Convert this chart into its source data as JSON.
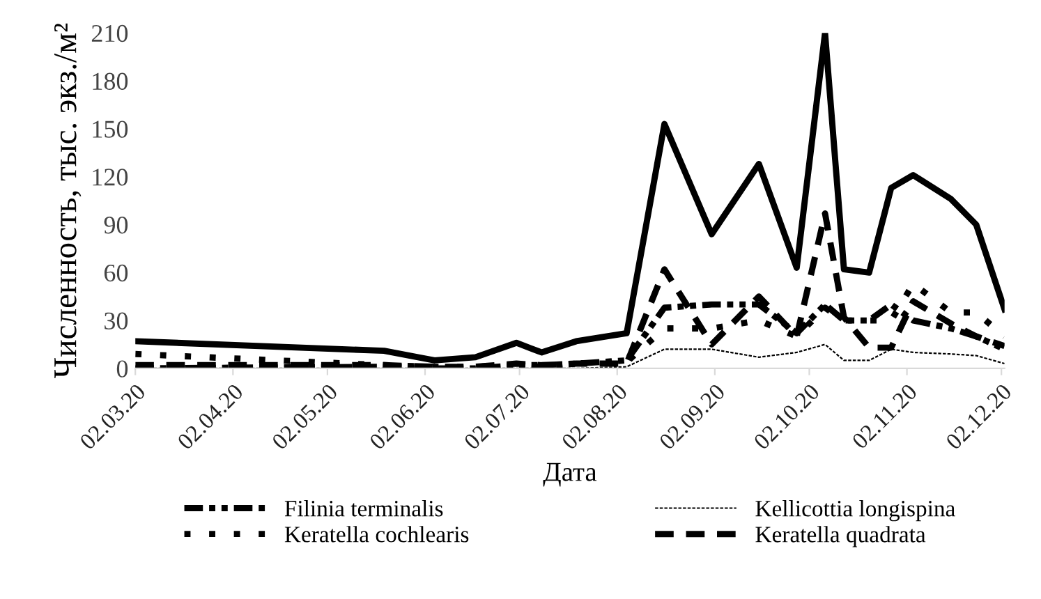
{
  "chart_data": {
    "type": "line",
    "xlabel": "Дата",
    "ylabel": "Численность, тыс. экз./м²",
    "x": [
      "2020-03-02",
      "2020-05-20",
      "2020-06-05",
      "2020-06-18",
      "2020-07-01",
      "2020-07-09",
      "2020-07-20",
      "2020-08-05",
      "2020-08-17",
      "2020-09-01",
      "2020-09-16",
      "2020-09-28",
      "2020-10-07",
      "2020-10-13",
      "2020-10-21",
      "2020-10-28",
      "2020-11-04",
      "2020-11-16",
      "2020-11-24",
      "2020-12-03"
    ],
    "series": [
      {
        "name": "Filinia terminalis",
        "color": "#000000",
        "line_style": "dashdotdot",
        "values": [
          0,
          1,
          0,
          0,
          2,
          1,
          3,
          5,
          38,
          40,
          40,
          22,
          40,
          30,
          30,
          40,
          30,
          25,
          20,
          12
        ]
      },
      {
        "name": "Keratella cochlearis",
        "color": "#000000",
        "line_style": "dotted",
        "values": [
          9,
          2,
          1,
          1,
          2,
          2,
          3,
          4,
          25,
          25,
          30,
          20,
          38,
          30,
          30,
          30,
          53,
          35,
          35,
          20
        ]
      },
      {
        "name": "Kellicottia longispina",
        "color": "#000000",
        "line_style": "thin",
        "values": [
          0,
          0,
          0,
          0,
          0,
          0,
          0,
          1,
          12,
          12,
          7,
          10,
          15,
          5,
          5,
          12,
          10,
          9,
          8,
          3
        ]
      },
      {
        "name": "Keratella quadrata",
        "color": "#000000",
        "line_style": "dashed",
        "values": [
          2,
          2,
          1,
          1,
          3,
          2,
          3,
          3,
          62,
          15,
          45,
          20,
          97,
          32,
          13,
          13,
          42,
          28,
          20,
          14
        ]
      },
      {
        "color": "#000000",
        "line_style": "solid",
        "values": [
          17,
          11,
          5,
          7,
          16,
          10,
          17,
          22,
          153,
          84,
          128,
          63,
          210,
          62,
          60,
          113,
          121,
          106,
          90,
          37
        ]
      }
    ],
    "xlim": [
      "2020-03-02",
      "2020-12-03"
    ],
    "xticks": [
      {
        "value": "2020-03-02",
        "label": "02.03.20"
      },
      {
        "value": "2020-04-02",
        "label": "02.04.20"
      },
      {
        "value": "2020-05-02",
        "label": "02.05.20"
      },
      {
        "value": "2020-06-02",
        "label": "02.06.20"
      },
      {
        "value": "2020-07-02",
        "label": "02.07.20"
      },
      {
        "value": "2020-08-02",
        "label": "02.08.20"
      },
      {
        "value": "2020-09-02",
        "label": "02.09.20"
      },
      {
        "value": "2020-10-02",
        "label": "02.10.20"
      },
      {
        "value": "2020-11-02",
        "label": "02.11.20"
      },
      {
        "value": "2020-12-02",
        "label": "02.12.20"
      }
    ],
    "ylim": [
      0,
      210
    ],
    "yticks": [
      0,
      30,
      60,
      90,
      120,
      150,
      180,
      210
    ],
    "grid": false,
    "legend": "bottom"
  }
}
